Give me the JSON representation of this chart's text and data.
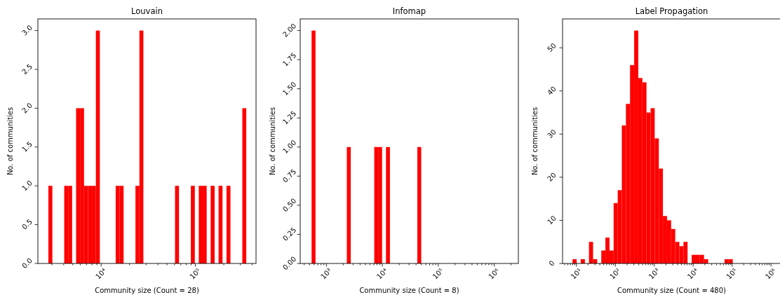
{
  "chart_data": [
    {
      "type": "histogram",
      "title": "Louvain",
      "xlabel": "Community size (Count = 28)",
      "ylabel": "No. of communities",
      "color": "#ff0000",
      "log": "x",
      "bins": [
        2754,
        3034,
        3342,
        3681,
        4055,
        4467,
        4920,
        5420,
        5970,
        6577,
        7244,
        7980,
        8790,
        9683,
        10670,
        11750,
        12940,
        14260,
        15700,
        17300,
        19050,
        20990,
        23120,
        25470,
        28050,
        30900,
        34040,
        37500,
        41300,
        45500,
        50120,
        55210,
        60810,
        66990,
        73790,
        81280,
        89540,
        98630,
        108600,
        119700,
        131800,
        145200,
        160000,
        176200,
        194100,
        213800,
        235500,
        259400,
        285800,
        314800,
        346700
      ],
      "values": [
        1,
        0,
        0,
        0,
        1,
        1,
        0,
        2,
        2,
        1,
        1,
        1,
        3,
        0,
        0,
        0,
        0,
        1,
        1,
        0,
        0,
        0,
        1,
        3,
        0,
        0,
        0,
        0,
        0,
        0,
        0,
        0,
        1,
        0,
        0,
        0,
        1,
        0,
        1,
        1,
        0,
        1,
        0,
        1,
        0,
        1,
        0,
        0,
        0,
        2
      ],
      "xlim": [
        2130,
        440000
      ],
      "ylim": [
        0,
        3.15
      ],
      "xticks": [
        {
          "value": 3000,
          "label": null
        },
        {
          "value": 4000,
          "label": null
        },
        {
          "value": 5000,
          "label": null
        },
        {
          "value": 6000,
          "label": null
        },
        {
          "value": 7000,
          "label": null
        },
        {
          "value": 8000,
          "label": null
        },
        {
          "value": 9000,
          "label": null
        },
        {
          "value": 10000,
          "label": "10⁴"
        },
        {
          "value": 20000,
          "label": null
        },
        {
          "value": 30000,
          "label": null
        },
        {
          "value": 40000,
          "label": null
        },
        {
          "value": 50000,
          "label": null
        },
        {
          "value": 60000,
          "label": null
        },
        {
          "value": 70000,
          "label": null
        },
        {
          "value": 80000,
          "label": null
        },
        {
          "value": 90000,
          "label": null
        },
        {
          "value": 100000,
          "label": "10⁵"
        },
        {
          "value": 200000,
          "label": null
        },
        {
          "value": 300000,
          "label": null
        },
        {
          "value": 400000,
          "label": null
        }
      ],
      "yticks": [
        {
          "value": 0,
          "label": "0.0"
        },
        0.5,
        {
          "value": 1,
          "label": "1.0"
        },
        1.5,
        {
          "value": 2,
          "label": "2.0"
        },
        2.5,
        {
          "value": 3,
          "label": "3.0"
        }
      ]
    },
    {
      "type": "histogram",
      "title": "Infomap",
      "xlabel": "Community size (Count = 8)",
      "ylabel": "No. of communities",
      "color": "#ff0000",
      "log": "x",
      "bins": [
        543.3,
        638.3,
        749.9,
        881.0,
        1035,
        1216,
        1429,
        1679,
        1972,
        2317,
        2723,
        3199,
        3758,
        4416,
        5188,
        6095,
        7161,
        8414,
        9886,
        11610,
        13650,
        16030,
        18840,
        22130,
        26000,
        30550,
        35890,
        42170,
        49550,
        58210,
        68390,
        80350,
        94410,
        110900,
        130300,
        153100,
        179900,
        211300,
        248300,
        291700,
        342800,
        402700,
        473200,
        555900,
        653100,
        767400,
        901600,
        1059000,
        1245000,
        1462000,
        1718000
      ],
      "values": [
        2,
        0,
        0,
        0,
        0,
        0,
        0,
        0,
        0,
        1,
        0,
        0,
        0,
        0,
        0,
        0,
        1,
        1,
        0,
        1,
        0,
        0,
        0,
        0,
        0,
        0,
        0,
        1,
        0,
        0,
        0,
        0,
        0,
        0,
        0,
        0,
        0,
        0,
        0,
        0,
        0,
        0,
        0,
        0,
        0,
        0,
        0,
        0,
        0,
        0
      ],
      "xlim": [
        340,
        2700000
      ],
      "ylim": [
        0,
        2.1
      ],
      "xticks": [
        {
          "value": 400,
          "label": null
        },
        {
          "value": 500,
          "label": null
        },
        {
          "value": 600,
          "label": null
        },
        {
          "value": 700,
          "label": null
        },
        {
          "value": 800,
          "label": null
        },
        {
          "value": 900,
          "label": null
        },
        {
          "value": 1000,
          "label": "10³"
        },
        {
          "value": 2000,
          "label": null
        },
        {
          "value": 3000,
          "label": null
        },
        {
          "value": 4000,
          "label": null
        },
        {
          "value": 5000,
          "label": null
        },
        {
          "value": 6000,
          "label": null
        },
        {
          "value": 7000,
          "label": null
        },
        {
          "value": 8000,
          "label": null
        },
        {
          "value": 9000,
          "label": null
        },
        {
          "value": 10000,
          "label": "10⁴"
        },
        {
          "value": 20000,
          "label": null
        },
        {
          "value": 30000,
          "label": null
        },
        {
          "value": 40000,
          "label": null
        },
        {
          "value": 50000,
          "label": null
        },
        {
          "value": 60000,
          "label": null
        },
        {
          "value": 70000,
          "label": null
        },
        {
          "value": 80000,
          "label": null
        },
        {
          "value": 90000,
          "label": null
        },
        {
          "value": 100000,
          "label": "10⁵"
        },
        {
          "value": 200000,
          "label": null
        },
        {
          "value": 300000,
          "label": null
        },
        {
          "value": 400000,
          "label": null
        },
        {
          "value": 500000,
          "label": null
        },
        {
          "value": 600000,
          "label": null
        },
        {
          "value": 700000,
          "label": null
        },
        {
          "value": 800000,
          "label": null
        },
        {
          "value": 900000,
          "label": null
        },
        {
          "value": 1000000,
          "label": "10⁶"
        },
        {
          "value": 2000000,
          "label": null
        }
      ],
      "yticks": [
        {
          "value": 0,
          "label": "0.00"
        },
        0.25,
        {
          "value": 0.5,
          "label": "0.50"
        },
        0.75,
        {
          "value": 1,
          "label": "1.00"
        },
        1.25,
        {
          "value": 1.5,
          "label": "1.50"
        },
        1.75,
        {
          "value": 2,
          "label": "2.00"
        }
      ]
    },
    {
      "type": "histogram",
      "title": "Label Propagation",
      "xlabel": "Community size (Count = 480)",
      "ylabel": "No. of communities",
      "color": "#ff0000",
      "log": "x",
      "bins": [
        7.94,
        10.13,
        12.92,
        16.48,
        21.01,
        26.79,
        34.17,
        43.58,
        55.57,
        70.87,
        90.36,
        115.2,
        146.9,
        187.4,
        239.0,
        304.8,
        388.7,
        495.7,
        632.1,
        806.1,
        1028,
        1311,
        1672,
        2132,
        2719,
        3467,
        4422,
        5639,
        7191,
        9171,
        11700,
        14910,
        19020,
        24250,
        30930,
        39450,
        50300,
        64150,
        81810,
        104300,
        133000,
        169700,
        216400,
        275900,
        351900,
        448700,
        572200,
        729800,
        930700,
        1187000,
        1514000
      ],
      "values": [
        1,
        0,
        1,
        0,
        5,
        1,
        0,
        3,
        6,
        3,
        14,
        17,
        32,
        37,
        46,
        54,
        43,
        42,
        35,
        36,
        29,
        22,
        11,
        10,
        8,
        5,
        4,
        5,
        0,
        2,
        2,
        2,
        1,
        0,
        0,
        0,
        0,
        1,
        1,
        0,
        0,
        0,
        0,
        0,
        0,
        0,
        0,
        0,
        0,
        0
      ],
      "xlim": [
        4.4,
        1780000
      ],
      "ylim": [
        0,
        56.7
      ],
      "xticks": [
        {
          "value": 5,
          "label": null
        },
        {
          "value": 6,
          "label": null
        },
        {
          "value": 7,
          "label": null
        },
        {
          "value": 8,
          "label": null
        },
        {
          "value": 9,
          "label": null
        },
        {
          "value": 10,
          "label": "10¹"
        },
        {
          "value": 20,
          "label": null
        },
        {
          "value": 30,
          "label": null
        },
        {
          "value": 40,
          "label": null
        },
        {
          "value": 50,
          "label": null
        },
        {
          "value": 60,
          "label": null
        },
        {
          "value": 70,
          "label": null
        },
        {
          "value": 80,
          "label": null
        },
        {
          "value": 90,
          "label": null
        },
        {
          "value": 100,
          "label": "10²"
        },
        {
          "value": 200,
          "label": null
        },
        {
          "value": 300,
          "label": null
        },
        {
          "value": 400,
          "label": null
        },
        {
          "value": 500,
          "label": null
        },
        {
          "value": 600,
          "label": null
        },
        {
          "value": 700,
          "label": null
        },
        {
          "value": 800,
          "label": null
        },
        {
          "value": 900,
          "label": null
        },
        {
          "value": 1000,
          "label": "10³"
        },
        {
          "value": 2000,
          "label": null
        },
        {
          "value": 3000,
          "label": null
        },
        {
          "value": 4000,
          "label": null
        },
        {
          "value": 5000,
          "label": null
        },
        {
          "value": 6000,
          "label": null
        },
        {
          "value": 7000,
          "label": null
        },
        {
          "value": 8000,
          "label": null
        },
        {
          "value": 9000,
          "label": null
        },
        {
          "value": 10000,
          "label": "10⁴"
        },
        {
          "value": 20000,
          "label": null
        },
        {
          "value": 30000,
          "label": null
        },
        {
          "value": 40000,
          "label": null
        },
        {
          "value": 50000,
          "label": null
        },
        {
          "value": 60000,
          "label": null
        },
        {
          "value": 70000,
          "label": null
        },
        {
          "value": 80000,
          "label": null
        },
        {
          "value": 90000,
          "label": null
        },
        {
          "value": 100000,
          "label": "10⁵"
        },
        {
          "value": 200000,
          "label": null
        },
        {
          "value": 300000,
          "label": null
        },
        {
          "value": 400000,
          "label": null
        },
        {
          "value": 500000,
          "label": null
        },
        {
          "value": 600000,
          "label": null
        },
        {
          "value": 700000,
          "label": null
        },
        {
          "value": 800000,
          "label": null
        },
        {
          "value": 900000,
          "label": null
        },
        {
          "value": 1000000,
          "label": "10⁶"
        }
      ],
      "yticks": [
        0,
        10,
        20,
        30,
        40,
        50
      ]
    }
  ]
}
